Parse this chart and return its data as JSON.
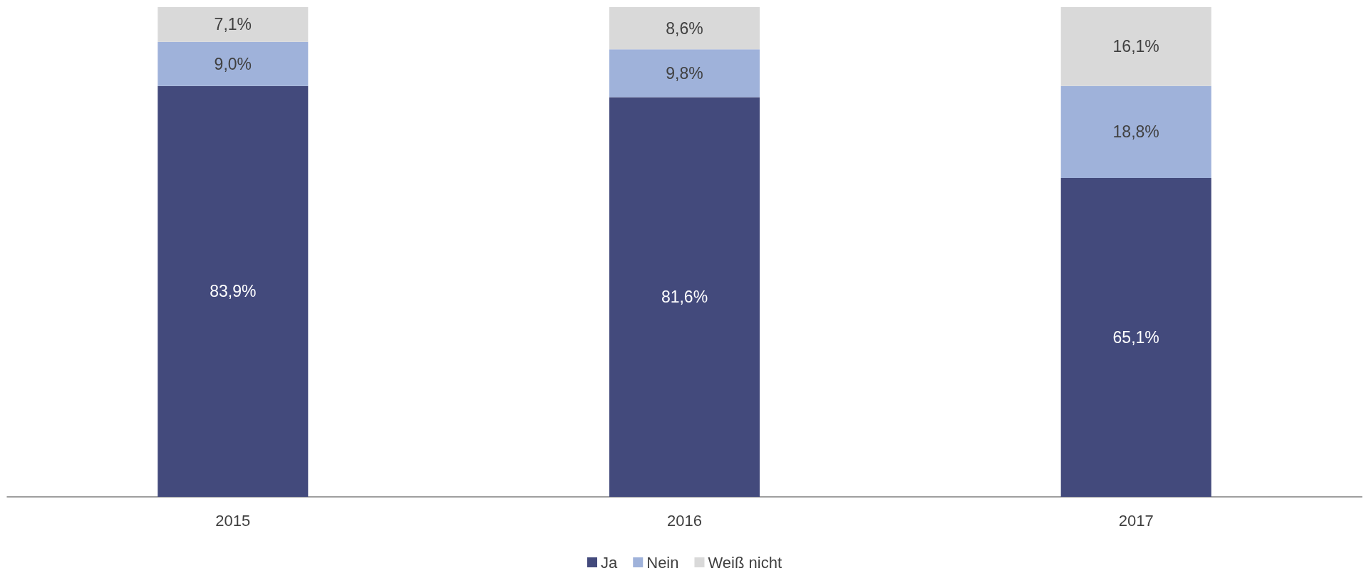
{
  "chart_data": {
    "type": "bar",
    "stacked": true,
    "categories": [
      "2015",
      "2016",
      "2017"
    ],
    "ylim": [
      0,
      100
    ],
    "legend": "bottom",
    "series": [
      {
        "name": "Ja",
        "color": "#434a7c",
        "values": [
          83.9,
          81.6,
          65.1
        ],
        "value_labels": [
          "83,9%",
          "81,6%",
          "65,1%"
        ]
      },
      {
        "name": "Nein",
        "color": "#9fb2da",
        "values": [
          9.0,
          9.8,
          18.8
        ],
        "value_labels": [
          "9,0%",
          "9,8%",
          "18,8%"
        ]
      },
      {
        "name": "Weiß nicht",
        "color": "#d9d9d9",
        "values": [
          7.1,
          8.6,
          16.1
        ],
        "value_labels": [
          "7,1%",
          "8,6%",
          "16,1%"
        ]
      }
    ]
  }
}
